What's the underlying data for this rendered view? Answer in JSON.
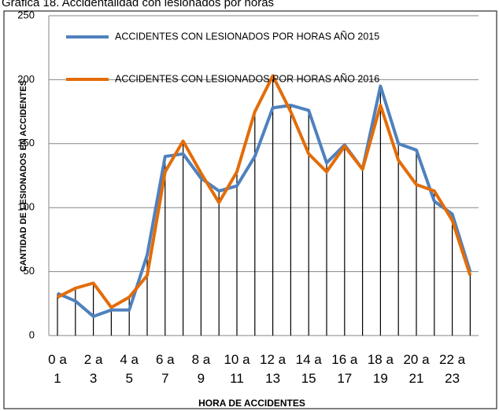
{
  "chart_data": {
    "type": "line",
    "title": "Gráfica 18. Accidentalidad con lesionados por horas",
    "x_label": "HORA DE ACCIDENTES",
    "y_label": "CANTIDAD DE LESIONADOS EN ACCIDENTES",
    "categories": [
      "0 a 1",
      null,
      "2 a 3",
      null,
      "4 a 5",
      null,
      "6 a 7",
      null,
      "8 a 9",
      null,
      "10 a 11",
      null,
      "12 a 13",
      null,
      "14 a 15",
      null,
      "16 a 17",
      null,
      "18 a 19",
      null,
      "20 a 21",
      null,
      "22 a 23",
      null
    ],
    "series": [
      {
        "name": "ACCIDENTES  CON LESIONADOS POR HORAS  AÑO 2015",
        "color": "#4f81bd",
        "values": [
          33,
          27,
          15,
          20,
          20,
          63,
          140,
          142,
          123,
          113,
          117,
          140,
          178,
          180,
          176,
          135,
          149,
          130,
          195,
          150,
          145,
          105,
          95,
          50
        ]
      },
      {
        "name": "ACCIDENTES  CON LESIONADOS POR HORAS  AÑO 2016",
        "color": "#e36c09",
        "values": [
          30,
          37,
          41,
          22,
          30,
          47,
          128,
          152,
          127,
          104,
          128,
          175,
          203,
          175,
          142,
          128,
          148,
          130,
          180,
          137,
          118,
          113,
          90,
          47
        ]
      }
    ],
    "ylim": [
      0,
      250
    ],
    "yticks": [
      0,
      50,
      100,
      150,
      200,
      250
    ],
    "grid": true,
    "drop_lines": true
  }
}
